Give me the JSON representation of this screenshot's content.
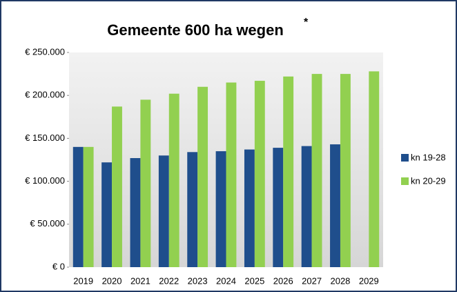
{
  "chart_data": {
    "type": "bar",
    "title": "Gemeente 600 ha wegen",
    "title_note": "*",
    "categories": [
      "2019",
      "2020",
      "2021",
      "2022",
      "2023",
      "2024",
      "2025",
      "2026",
      "2027",
      "2028",
      "2029"
    ],
    "series": [
      {
        "name": "kn 19-28",
        "color": "#1f4e8c",
        "values": [
          140000,
          122000,
          127000,
          130000,
          134000,
          135000,
          137000,
          139000,
          141000,
          143000,
          null
        ]
      },
      {
        "name": "kn 20-29",
        "color": "#92d050",
        "values": [
          140000,
          187000,
          195000,
          202000,
          210000,
          215000,
          217000,
          222000,
          225000,
          225000,
          228000
        ]
      }
    ],
    "ylim": [
      0,
      250000
    ],
    "yticks": [
      {
        "value": 0,
        "label": "€ 0"
      },
      {
        "value": 50000,
        "label": "€ 50.000"
      },
      {
        "value": 100000,
        "label": "€ 100.000"
      },
      {
        "value": 150000,
        "label": "€ 150.000"
      },
      {
        "value": 200000,
        "label": "€ 200.000"
      },
      {
        "value": 250000,
        "label": "€ 250.000"
      }
    ],
    "grid": false,
    "legend": "right"
  }
}
